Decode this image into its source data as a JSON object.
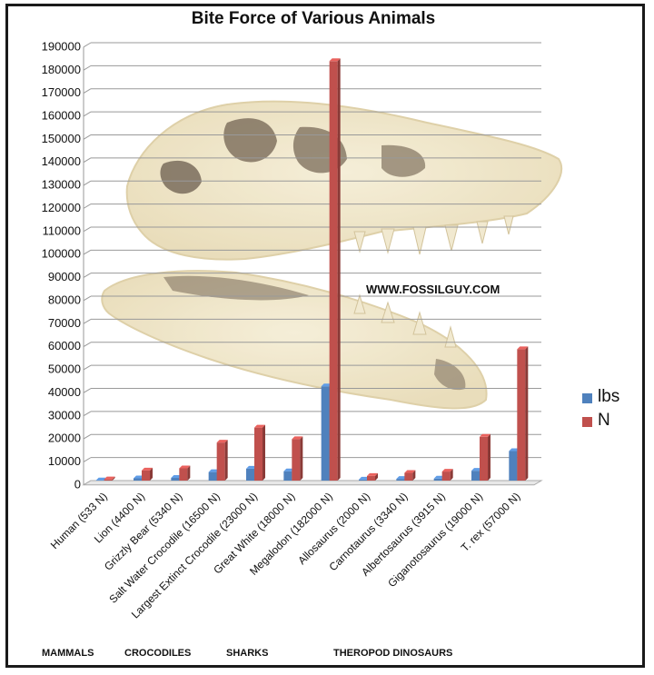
{
  "chart_data": {
    "type": "bar",
    "title": "Bite Force of Various Animals",
    "categories": [
      "Human (533 N)",
      "Lion (4400 N)",
      "Grizzly Bear (5340 N)",
      "Salt Water Crocodile (16500 N)",
      "Largest Extinct Crocodile (23000 N)",
      "Great White (18000 N)",
      "Megalodon (182000 N)",
      "Allosaurus (2000 N)",
      "Carnotaurus (3340 N)",
      "Albertosaurus (3915 N)",
      "Giganotosaurus (19000 N)",
      "T. rex (57000 N)"
    ],
    "series": [
      {
        "name": "lbs",
        "color": "#4f81bd",
        "values": [
          120,
          990,
          1200,
          3700,
          5170,
          4050,
          40900,
          450,
          750,
          880,
          4270,
          12800
        ]
      },
      {
        "name": "N",
        "color": "#c0504d",
        "values": [
          533,
          4400,
          5340,
          16500,
          23000,
          18000,
          182000,
          2000,
          3340,
          3915,
          19000,
          57000
        ]
      }
    ],
    "ylim": [
      0,
      190000
    ],
    "ytick_step": 10000,
    "grid": true,
    "legend_position": "right"
  },
  "annotations": {
    "watermark": "WWW.FOSSILGUY.COM",
    "groups": [
      "MAMMALS",
      "CROCODILES",
      "SHARKS",
      "THEROPOD DINOSAURS"
    ]
  }
}
